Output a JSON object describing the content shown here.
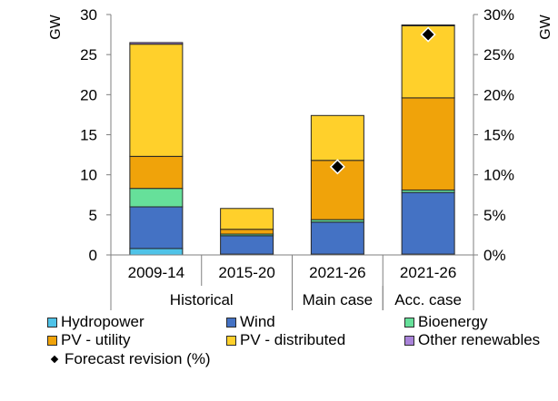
{
  "chart_data": {
    "type": "bar",
    "stacked": true,
    "categories": [
      "2009-14",
      "2015-20",
      "2021-26",
      "2021-26"
    ],
    "groups": [
      {
        "label": "Historical",
        "categories": [
          0,
          1
        ]
      },
      {
        "label": "Main case",
        "categories": [
          2
        ]
      },
      {
        "label": "Acc. case",
        "categories": [
          3
        ]
      }
    ],
    "ylabel": "GW",
    "y2label": "GW",
    "ylim": [
      0,
      30
    ],
    "yticks": [
      0,
      5,
      10,
      15,
      20,
      25,
      30
    ],
    "y2lim": [
      0,
      30
    ],
    "y2ticks": [
      0,
      5,
      10,
      15,
      20,
      25,
      30
    ],
    "y2ticklabels": [
      "0%",
      "5%",
      "10%",
      "15%",
      "20%",
      "25%",
      "30%"
    ],
    "series": [
      {
        "name": "Hydropower",
        "color": "#4fc3e8",
        "values": [
          0.8,
          0.1,
          0.1,
          0.1
        ]
      },
      {
        "name": "Wind",
        "color": "#4472c4",
        "values": [
          5.2,
          2.3,
          4.0,
          7.7
        ]
      },
      {
        "name": "Bioenergy",
        "color": "#66e09a",
        "values": [
          2.3,
          0.2,
          0.3,
          0.3
        ]
      },
      {
        "name": "PV - utility",
        "color": "#f0a30a",
        "values": [
          4.0,
          0.6,
          7.4,
          11.5
        ]
      },
      {
        "name": "PV - distributed",
        "color": "#ffd02b",
        "values": [
          14.0,
          2.6,
          5.6,
          9.0
        ]
      },
      {
        "name": "Other renewables",
        "color": "#a983d9",
        "values": [
          0.2,
          0.0,
          0.0,
          0.1
        ]
      }
    ],
    "forecast_revision": {
      "name": "Forecast revision (%)",
      "values": [
        null,
        null,
        11,
        27.5
      ]
    },
    "legend_position": "bottom",
    "grid": false
  },
  "legend": {
    "items": [
      {
        "label": "Hydropower",
        "color": "#4fc3e8"
      },
      {
        "label": "Wind",
        "color": "#4472c4"
      },
      {
        "label": "Bioenergy",
        "color": "#66e09a"
      },
      {
        "label": "PV - utility",
        "color": "#f0a30a"
      },
      {
        "label": "PV - distributed",
        "color": "#ffd02b"
      },
      {
        "label": "Other renewables",
        "color": "#a983d9"
      }
    ],
    "revision_label": "Forecast revision (%)"
  }
}
